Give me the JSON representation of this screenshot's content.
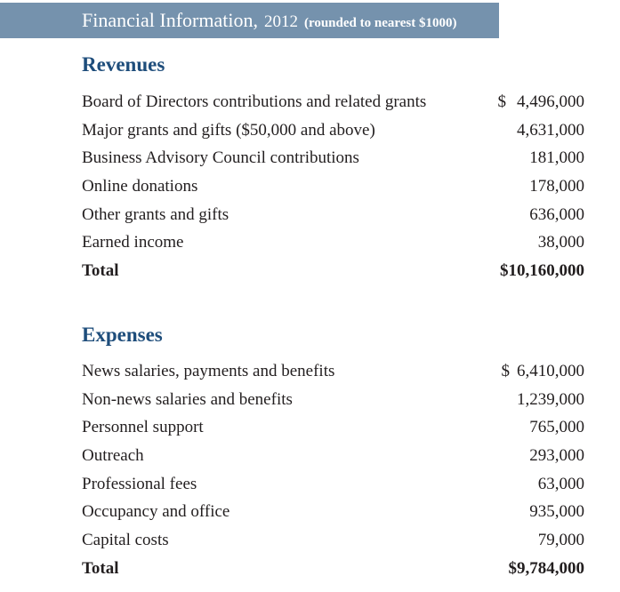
{
  "header": {
    "title_main": "Financial Information,",
    "title_year": "2012",
    "title_note": "(rounded to nearest $1000)",
    "bar_color": "#7592ad",
    "text_color": "#ffffff"
  },
  "colors": {
    "section_heading": "#1e4d7b",
    "body_text": "#221e1f",
    "background": "#ffffff"
  },
  "revenues": {
    "heading": "Revenues",
    "rows": [
      {
        "label": "Board of Directors contributions and related grants",
        "currency": "$",
        "value": "4,496,000"
      },
      {
        "label": "Major grants and gifts ($50,000 and above)",
        "value": "4,631,000"
      },
      {
        "label": "Business Advisory Council contributions",
        "value": "181,000"
      },
      {
        "label": "Online donations",
        "value": "178,000"
      },
      {
        "label": "Other grants and gifts",
        "value": "636,000"
      },
      {
        "label": "Earned income",
        "value": "38,000"
      }
    ],
    "total": {
      "label": "Total",
      "value": "$10,160,000"
    }
  },
  "expenses": {
    "heading": "Expenses",
    "rows": [
      {
        "label": "News salaries, payments and benefits",
        "currency": "$",
        "value": "6,410,000"
      },
      {
        "label": "Non-news salaries and benefits",
        "value": "1,239,000"
      },
      {
        "label": "Personnel support",
        "value": "765,000"
      },
      {
        "label": "Outreach",
        "value": "293,000"
      },
      {
        "label": "Professional fees",
        "value": "63,000"
      },
      {
        "label": "Occupancy and office",
        "value": "935,000"
      },
      {
        "label": "Capital costs",
        "value": "79,000"
      }
    ],
    "total": {
      "label": "Total",
      "value": "$9,784,000"
    }
  }
}
